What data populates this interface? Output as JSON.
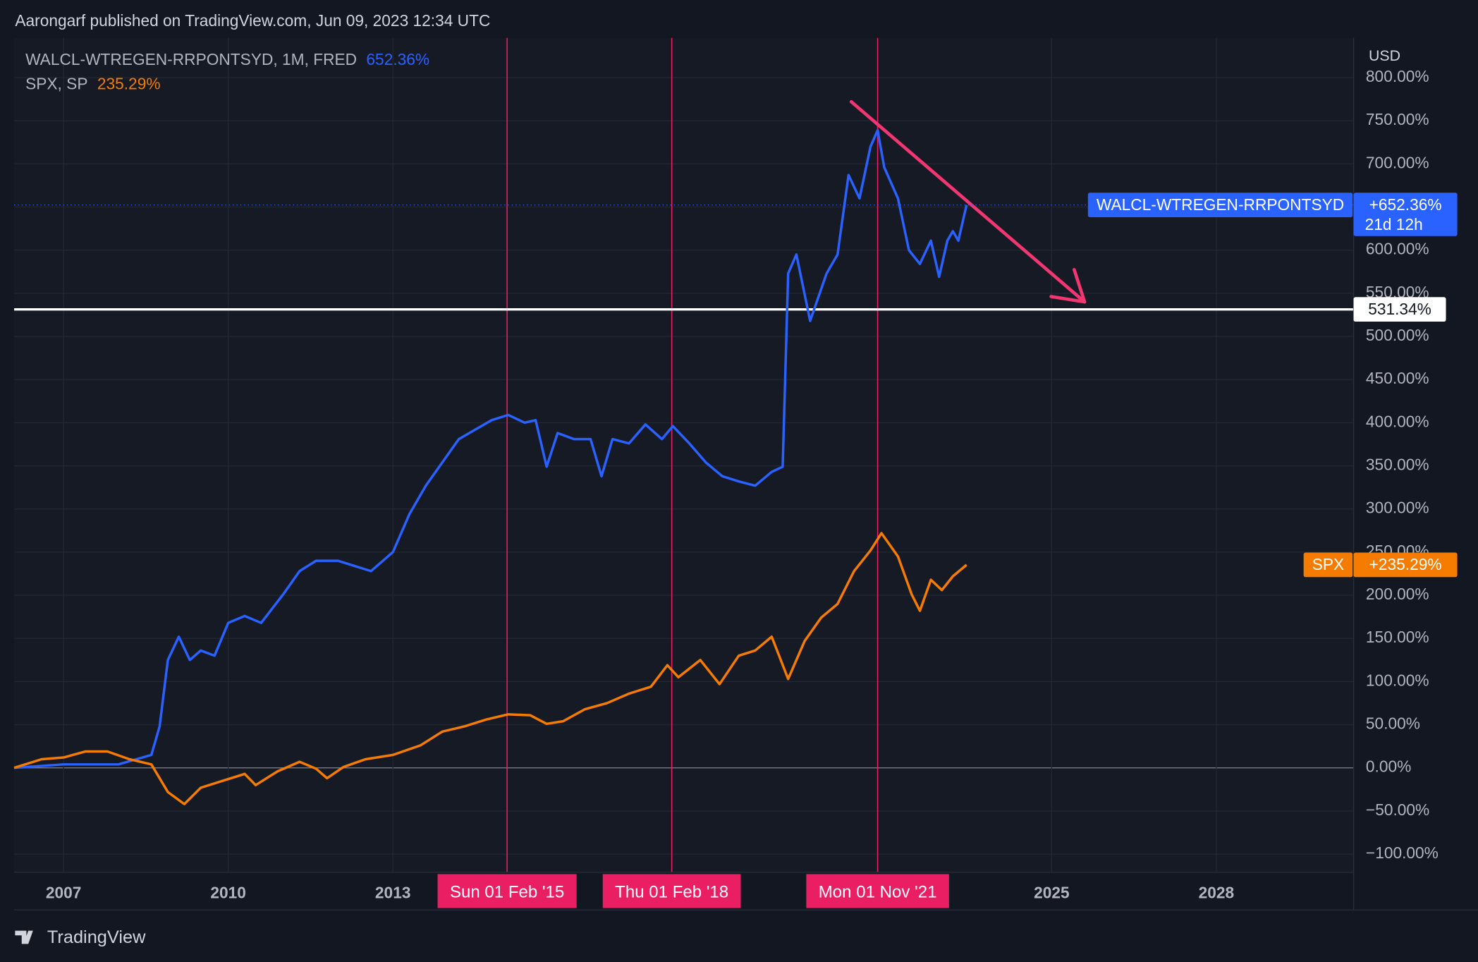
{
  "header": "Aarongarf published on TradingView.com, Jun 09, 2023 12:34 UTC",
  "footer": {
    "brand": "TradingView"
  },
  "chart_data": {
    "type": "line",
    "y_axis_label": "USD",
    "xlim": [
      2006.1,
      2030.5
    ],
    "ylim": [
      -121,
      846
    ],
    "xticks": [
      2007,
      2010,
      2013,
      2025,
      2028
    ],
    "yticks": [
      {
        "value": -100,
        "label": "−100.00%"
      },
      {
        "value": -50,
        "label": "−50.00%"
      },
      {
        "value": 0,
        "label": "0.00%"
      },
      {
        "value": 50,
        "label": "50.00%"
      },
      {
        "value": 100,
        "label": "100.00%"
      },
      {
        "value": 150,
        "label": "150.00%"
      },
      {
        "value": 200,
        "label": "200.00%"
      },
      {
        "value": 250,
        "label": "250.00%"
      },
      {
        "value": 300,
        "label": "300.00%"
      },
      {
        "value": 350,
        "label": "350.00%"
      },
      {
        "value": 400,
        "label": "400.00%"
      },
      {
        "value": 450,
        "label": "450.00%"
      },
      {
        "value": 500,
        "label": "500.00%"
      },
      {
        "value": 550,
        "label": "550.00%"
      },
      {
        "value": 600,
        "label": "600.00%"
      },
      {
        "value": 650,
        "label": "650.00%"
      },
      {
        "value": 700,
        "label": "700.00%"
      },
      {
        "value": 750,
        "label": "750.00%"
      },
      {
        "value": 800,
        "label": "800.00%"
      }
    ],
    "grid": true,
    "series": [
      {
        "name": "WALCL-WTREGEN-RRPONTSYD",
        "legend": "WALCL-WTREGEN-RRPONTSYD, 1M, FRED",
        "color": "#2962ff",
        "last_value_label": "652.36%",
        "price_tag": "+652.36%",
        "countdown": "21d 12h",
        "x": [
          2006.1,
          2007,
          2008,
          2008.6,
          2008.75,
          2008.9,
          2009.1,
          2009.3,
          2009.5,
          2009.75,
          2010,
          2010.3,
          2010.6,
          2011,
          2011.3,
          2011.6,
          2012,
          2012.3,
          2012.6,
          2013,
          2013.3,
          2013.6,
          2013.9,
          2014.2,
          2014.5,
          2014.8,
          2015.1,
          2015.4,
          2015.6,
          2015.8,
          2016,
          2016.3,
          2016.6,
          2016.8,
          2017,
          2017.3,
          2017.6,
          2017.9,
          2018.1,
          2018.4,
          2018.7,
          2019,
          2019.3,
          2019.6,
          2019.9,
          2020.1,
          2020.2,
          2020.35,
          2020.6,
          2020.9,
          2021.1,
          2021.3,
          2021.5,
          2021.7,
          2021.83,
          2021.95,
          2022.2,
          2022.4,
          2022.6,
          2022.8,
          2022.95,
          2023.1,
          2023.2,
          2023.3,
          2023.45
        ],
        "values": [
          0,
          4,
          4,
          15,
          48,
          125,
          152,
          125,
          136,
          130,
          168,
          176,
          168,
          201,
          228,
          240,
          240,
          234,
          228,
          250,
          294,
          327,
          354,
          381,
          392,
          403,
          409,
          400,
          403,
          349,
          388,
          381,
          381,
          338,
          381,
          376,
          398,
          381,
          396,
          376,
          354,
          338,
          332,
          327,
          343,
          349,
          573,
          595,
          518,
          573,
          595,
          687,
          660,
          720,
          739,
          696,
          660,
          600,
          584,
          611,
          569,
          611,
          622,
          611,
          652.36
        ]
      },
      {
        "name": "SPX, SP",
        "tag": "SPX",
        "color": "#f57c00",
        "last_value_label": "235.29%",
        "price_tag": "+235.29%",
        "x": [
          2006.1,
          2006.6,
          2007,
          2007.4,
          2007.8,
          2008.2,
          2008.6,
          2008.9,
          2009.2,
          2009.5,
          2009.9,
          2010.3,
          2010.5,
          2010.9,
          2011.3,
          2011.6,
          2011.8,
          2012.1,
          2012.5,
          2013,
          2013.5,
          2013.9,
          2014.3,
          2014.7,
          2015.1,
          2015.5,
          2015.8,
          2016.1,
          2016.5,
          2016.9,
          2017.3,
          2017.7,
          2018,
          2018.2,
          2018.6,
          2018.95,
          2019.3,
          2019.6,
          2019.9,
          2020.2,
          2020.5,
          2020.8,
          2021.1,
          2021.4,
          2021.7,
          2021.9,
          2022.2,
          2022.45,
          2022.6,
          2022.8,
          2023,
          2023.2,
          2023.45
        ],
        "values": [
          0,
          10,
          12,
          19,
          19,
          10,
          4,
          -28,
          -42,
          -23,
          -15,
          -7,
          -20,
          -4,
          7,
          -1,
          -12,
          1,
          10,
          15,
          26,
          42,
          48,
          56,
          62,
          61,
          51,
          54,
          68,
          75,
          86,
          94,
          119,
          105,
          125,
          97,
          130,
          136,
          152,
          103,
          147,
          174,
          190,
          228,
          252,
          272,
          245,
          201,
          182,
          218,
          206,
          222,
          235.29
        ]
      }
    ],
    "horizontal_line": {
      "value": 531.34,
      "label": "531.34%"
    },
    "vertical_lines": [
      {
        "x": 2015.08,
        "label": "Sun 01 Feb '15"
      },
      {
        "x": 2018.08,
        "label": "Thu 01 Feb '18"
      },
      {
        "x": 2021.83,
        "label": "Mon 01 Nov '21"
      }
    ],
    "arrow": {
      "from": [
        2021.35,
        772
      ],
      "to": [
        2025.6,
        540
      ]
    }
  }
}
